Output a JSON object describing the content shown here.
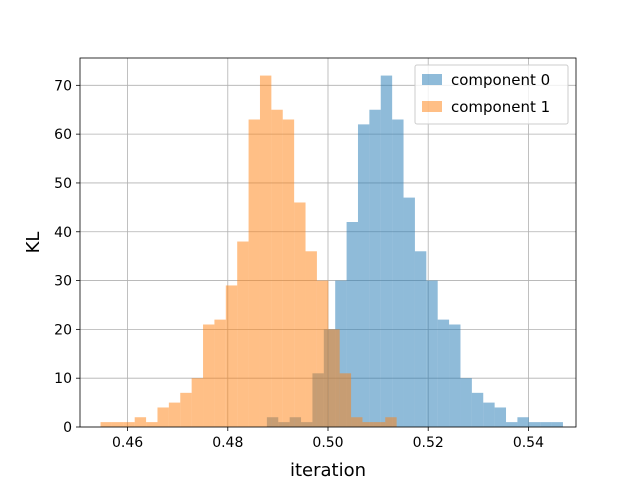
{
  "chart_data": {
    "type": "histogram",
    "title": "",
    "xlabel": "iteration",
    "ylabel": "KL",
    "xlim": [
      0.4505,
      0.5495
    ],
    "ylim": [
      0,
      75.6
    ],
    "grid": true,
    "legend_position": "upper-right",
    "xticks": [
      0.46,
      0.48,
      0.5,
      0.52,
      0.54
    ],
    "xtick_labels": [
      "0.46",
      "0.48",
      "0.50",
      "0.52",
      "0.54"
    ],
    "yticks": [
      0,
      10,
      20,
      30,
      40,
      50,
      60,
      70
    ],
    "ytick_labels": [
      "0",
      "10",
      "20",
      "30",
      "40",
      "50",
      "60",
      "70"
    ],
    "series": [
      {
        "name": "component 0",
        "color": "#1f77b4",
        "alpha": 0.5,
        "bin_start": 0.4878,
        "bin_width": 0.002273,
        "counts": [
          2,
          1,
          2,
          1,
          11,
          20,
          30,
          42,
          62,
          65,
          72,
          63,
          47,
          36,
          30,
          22,
          21,
          10,
          7,
          5,
          4,
          1,
          2,
          1,
          1,
          1
        ]
      },
      {
        "name": "component 1",
        "color": "#ff7f0e",
        "alpha": 0.5,
        "bin_start": 0.4546,
        "bin_width": 0.002273,
        "counts": [
          1,
          1,
          1,
          2,
          1,
          4,
          5,
          7,
          10,
          21,
          22,
          29,
          38,
          63,
          72,
          65,
          63,
          46,
          36,
          30,
          20,
          11,
          2,
          1,
          1,
          2
        ]
      }
    ]
  }
}
